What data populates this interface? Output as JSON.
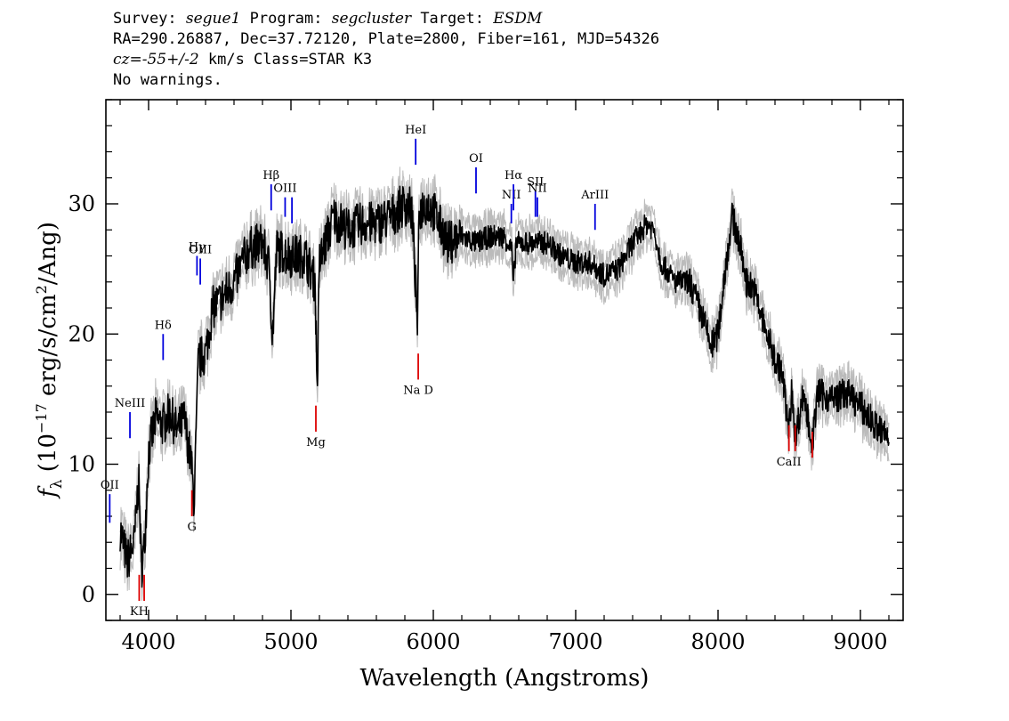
{
  "header": {
    "l1_a": "Survey: ",
    "l1_survey": "segue1",
    "l1_b": " Program: ",
    "l1_program": "segcluster",
    "l1_c": " Target: ",
    "l1_target": "ESDM",
    "line2": "RA=290.26887, Dec=37.72120, Plate=2800, Fiber=161, MJD=54326",
    "l3_cz": "cz=-55+/-2",
    "l3_rest": " km/s Class=STAR K3",
    "line4": "No warnings."
  },
  "colors": {
    "emission": "#0000dd",
    "absorption": "#dd0000",
    "spectrum": "#000000",
    "error": "#bbbbbb"
  },
  "chart_data": {
    "type": "line",
    "xlabel": "Wavelength (Angstroms)",
    "ylabel": "f_λ (10^-17 erg/s/cm^2/Ang)",
    "ylabel_parts": {
      "f": "f",
      "lambda": "λ",
      "open": " (10",
      "exp1": "−17",
      "mid": " erg/s/cm",
      "exp2": "2",
      "close": "/Ang)"
    },
    "xlim": [
      3700,
      9300
    ],
    "ylim": [
      -2,
      38
    ],
    "xticks": [
      4000,
      5000,
      6000,
      7000,
      8000,
      9000
    ],
    "yticks": [
      0,
      10,
      20,
      30
    ],
    "xtick_labels": [
      "4000",
      "5000",
      "6000",
      "7000",
      "8000",
      "9000"
    ],
    "ytick_labels": [
      "0",
      "10",
      "20",
      "30"
    ],
    "grid": false,
    "series": [
      {
        "x": [
          3800,
          3850,
          3900,
          3930,
          3950,
          3970,
          4000,
          4050,
          4100,
          4150,
          4200,
          4250,
          4300,
          4320,
          4350,
          4400,
          4450,
          4500,
          4600,
          4700,
          4800,
          4850,
          4870,
          4900,
          5000,
          5100,
          5170,
          5184,
          5200,
          5300,
          5400,
          5500,
          5600,
          5700,
          5800,
          5850,
          5890,
          5900,
          5950,
          6000,
          6100,
          6200,
          6300,
          6400,
          6500,
          6550,
          6563,
          6580,
          6700,
          6800,
          6900,
          7000,
          7100,
          7200,
          7300,
          7400,
          7500,
          7550,
          7600,
          7700,
          7800,
          7900,
          7950,
          8000,
          8050,
          8100,
          8150,
          8200,
          8250,
          8300,
          8400,
          8450,
          8498,
          8520,
          8542,
          8600,
          8662,
          8700,
          8800,
          8900,
          9000,
          9100,
          9150,
          9200
        ],
        "y": [
          5,
          2.5,
          4,
          9,
          2,
          3.5,
          11,
          13.5,
          13,
          14,
          12.5,
          13.5,
          10,
          7,
          18,
          18.5,
          22,
          22.5,
          24,
          26.5,
          27,
          25,
          19.5,
          26.5,
          26,
          26,
          24,
          15.5,
          25.5,
          29,
          28,
          28.5,
          28.5,
          29,
          30,
          29.5,
          20.5,
          29.5,
          30,
          29.5,
          27,
          27.5,
          27,
          27.5,
          27.5,
          26.5,
          23.5,
          27,
          27,
          27,
          26,
          25.5,
          25.5,
          24.5,
          25,
          27,
          28.5,
          28,
          25.5,
          24,
          24,
          21,
          19,
          20,
          25,
          29,
          27,
          24,
          23.5,
          21.5,
          18,
          17,
          12.5,
          16,
          12,
          15.5,
          11.5,
          15.5,
          15,
          15.5,
          14.5,
          13,
          12.5,
          12
        ]
      }
    ]
  },
  "lines": {
    "emission": [
      {
        "label": "OII",
        "x": 3727,
        "y1": 5.5,
        "y2": 7.7
      },
      {
        "label": "NeIII",
        "x": 3869,
        "y1": 12,
        "y2": 14
      },
      {
        "label": "Hδ",
        "x": 4102,
        "y1": 18,
        "y2": 20
      },
      {
        "label": "Hγ",
        "x": 4340,
        "y1": 24.5,
        "y2": 26
      },
      {
        "label": "OIII",
        "x": 4363,
        "y1": 23.8,
        "y2": 25.8
      },
      {
        "label": "Hβ",
        "x": 4861,
        "y1": 29.5,
        "y2": 31.5
      },
      {
        "label": "OIII",
        "x": 4959,
        "y1": 29,
        "y2": 30.5
      },
      {
        "label": "",
        "x": 5007,
        "y1": 28.5,
        "y2": 30.5
      },
      {
        "label": "HeI",
        "x": 5876,
        "y1": 33,
        "y2": 35
      },
      {
        "label": "OI",
        "x": 6300,
        "y1": 30.8,
        "y2": 32.8
      },
      {
        "label": "NII",
        "x": 6548,
        "y1": 28.5,
        "y2": 30
      },
      {
        "label": "Hα",
        "x": 6563,
        "y1": 29.5,
        "y2": 31.5
      },
      {
        "label": "SII",
        "x": 6717,
        "y1": 29,
        "y2": 31
      },
      {
        "label": "NII",
        "x": 6731,
        "y1": 29,
        "y2": 30.5
      },
      {
        "label": "ArIII",
        "x": 7136,
        "y1": 28,
        "y2": 30
      }
    ],
    "absorption": [
      {
        "label": "KH",
        "x": 3934,
        "y1": -0.5,
        "y2": 1.5
      },
      {
        "label": "",
        "x": 3969,
        "y1": -0.5,
        "y2": 1.5
      },
      {
        "label": "G",
        "x": 4304,
        "y1": 6,
        "y2": 8
      },
      {
        "label": "Mg",
        "x": 5175,
        "y1": 12.5,
        "y2": 14.5
      },
      {
        "label": "Na D",
        "x": 5894,
        "y1": 16.5,
        "y2": 18.5
      },
      {
        "label": "CaII",
        "x": 8498,
        "y1": 11,
        "y2": 13
      },
      {
        "label": "",
        "x": 8542,
        "y1": 11,
        "y2": 13
      },
      {
        "label": "",
        "x": 8662,
        "y1": 10.5,
        "y2": 12.5
      }
    ]
  }
}
